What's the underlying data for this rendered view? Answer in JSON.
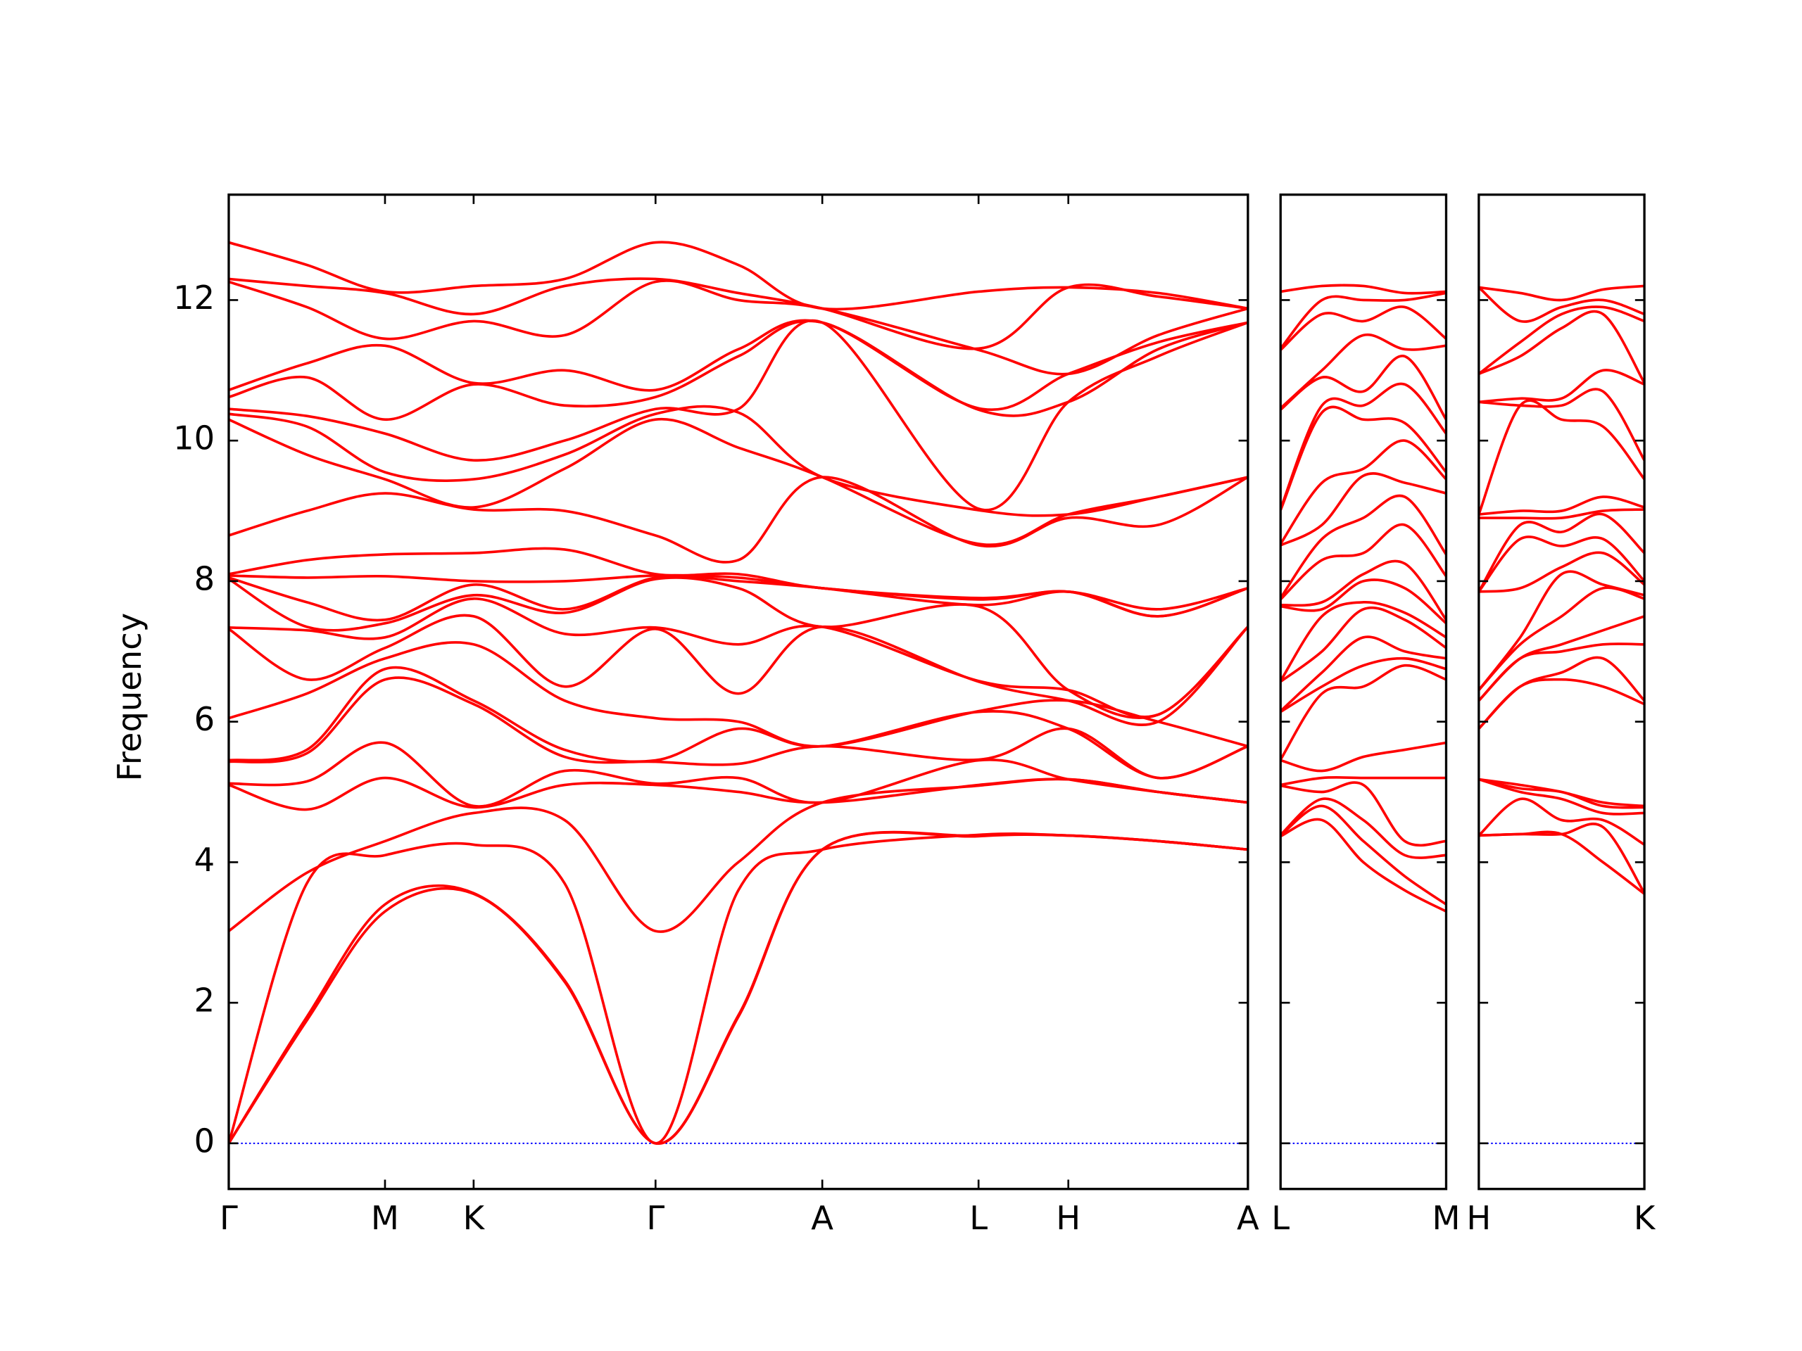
{
  "chart_data": [
    {
      "type": "line",
      "ylabel": "Frequency",
      "color": "#ff0000",
      "xlim": [
        0,
        8.74
      ],
      "ylim": [
        -0.65,
        13.5
      ],
      "xticks": [
        {
          "value": 0,
          "label": "Γ"
        },
        {
          "value": 1.34,
          "label": "M"
        },
        {
          "value": 2.1,
          "label": "K"
        },
        {
          "value": 3.66,
          "label": "Γ"
        },
        {
          "value": 5.09,
          "label": "A"
        },
        {
          "value": 6.43,
          "label": "L"
        },
        {
          "value": 7.2,
          "label": "H"
        },
        {
          "value": 8.74,
          "label": "A"
        }
      ],
      "yticks": [
        0,
        2,
        4,
        6,
        8,
        10,
        12
      ],
      "hline": 0,
      "hline_color": "#0000ff",
      "x": [
        0,
        0.67,
        1.34,
        2.1,
        2.88,
        3.66,
        4.37,
        5.09,
        6.43,
        7.2,
        7.97,
        8.74
      ],
      "series": [
        {
          "values": [
            0,
            1.75,
            3.3,
            3.55,
            2.3,
            0,
            1.8,
            4.18,
            4.37,
            4.38,
            4.3,
            4.18
          ]
        },
        {
          "values": [
            0,
            1.8,
            3.4,
            3.56,
            2.32,
            0,
            1.82,
            4.18,
            4.38,
            4.38,
            4.3,
            4.18
          ]
        },
        {
          "values": [
            0,
            3.7,
            4.1,
            4.25,
            3.7,
            0,
            3.6,
            4.18,
            4.39,
            4.38,
            4.3,
            4.18
          ]
        },
        {
          "values": [
            3.02,
            3.85,
            4.3,
            4.7,
            4.6,
            3.02,
            4.0,
            4.85,
            5.09,
            5.18,
            5.0,
            4.85
          ]
        },
        {
          "values": [
            5.1,
            4.75,
            5.2,
            4.78,
            5.1,
            5.1,
            5.0,
            4.85,
            5.1,
            5.18,
            5.0,
            4.85
          ]
        },
        {
          "values": [
            5.12,
            5.15,
            5.7,
            4.8,
            5.3,
            5.12,
            5.2,
            4.85,
            5.45,
            5.18,
            5.0,
            4.85
          ]
        },
        {
          "values": [
            5.43,
            5.55,
            6.6,
            6.25,
            5.5,
            5.43,
            5.4,
            5.65,
            5.46,
            5.9,
            5.2,
            5.65
          ]
        },
        {
          "values": [
            5.45,
            5.6,
            6.75,
            6.3,
            5.6,
            5.45,
            5.9,
            5.65,
            6.14,
            5.9,
            5.2,
            5.65
          ]
        },
        {
          "values": [
            6.05,
            6.4,
            6.9,
            7.1,
            6.3,
            6.05,
            6.0,
            5.65,
            6.15,
            6.3,
            6.0,
            5.65
          ]
        },
        {
          "values": [
            7.32,
            6.6,
            7.05,
            7.5,
            6.5,
            7.32,
            6.4,
            7.35,
            6.57,
            6.3,
            6.0,
            7.35
          ]
        },
        {
          "values": [
            7.34,
            7.3,
            7.2,
            7.75,
            7.25,
            7.34,
            7.1,
            7.35,
            6.58,
            6.45,
            6.1,
            7.35
          ]
        },
        {
          "values": [
            8.03,
            7.35,
            7.4,
            7.8,
            7.55,
            8.03,
            7.9,
            7.35,
            7.64,
            6.45,
            6.1,
            7.35
          ]
        },
        {
          "values": [
            8.05,
            7.7,
            7.45,
            7.95,
            7.6,
            8.05,
            8.0,
            7.9,
            7.66,
            7.85,
            7.5,
            7.9
          ]
        },
        {
          "values": [
            8.08,
            8.05,
            8.07,
            8.0,
            8.0,
            8.08,
            8.05,
            7.9,
            7.74,
            7.85,
            7.5,
            7.9
          ]
        },
        {
          "values": [
            8.1,
            8.3,
            8.38,
            8.4,
            8.45,
            8.1,
            8.1,
            7.9,
            7.76,
            7.85,
            7.6,
            7.9
          ]
        },
        {
          "values": [
            8.65,
            9.0,
            9.25,
            9.02,
            9.0,
            8.65,
            8.3,
            9.48,
            8.51,
            8.9,
            8.8,
            9.48
          ]
        },
        {
          "values": [
            10.3,
            9.8,
            9.45,
            9.05,
            9.6,
            10.3,
            9.9,
            9.48,
            8.53,
            8.95,
            9.2,
            9.48
          ]
        },
        {
          "values": [
            10.38,
            10.2,
            9.55,
            9.45,
            9.8,
            10.38,
            10.4,
            9.48,
            9.01,
            8.95,
            9.2,
            9.48
          ]
        },
        {
          "values": [
            10.45,
            10.35,
            10.1,
            9.72,
            10.0,
            10.45,
            10.45,
            11.68,
            9.03,
            10.55,
            11.2,
            11.68
          ]
        },
        {
          "values": [
            10.62,
            10.9,
            10.3,
            10.8,
            10.5,
            10.62,
            11.2,
            11.68,
            10.44,
            10.55,
            11.3,
            11.68
          ]
        },
        {
          "values": [
            10.72,
            11.1,
            11.35,
            10.82,
            11.0,
            10.72,
            11.3,
            11.68,
            10.46,
            10.95,
            11.4,
            11.68
          ]
        },
        {
          "values": [
            12.26,
            11.9,
            11.45,
            11.7,
            11.5,
            12.26,
            12.0,
            11.88,
            11.29,
            10.95,
            11.5,
            11.88
          ]
        },
        {
          "values": [
            12.3,
            12.2,
            12.1,
            11.8,
            12.2,
            12.3,
            12.1,
            11.88,
            11.31,
            12.18,
            12.05,
            11.88
          ]
        },
        {
          "values": [
            12.82,
            12.5,
            12.12,
            12.2,
            12.3,
            12.82,
            12.5,
            11.88,
            12.12,
            12.18,
            12.1,
            11.88
          ]
        }
      ]
    },
    {
      "type": "line",
      "color": "#ff0000",
      "xlim": [
        0,
        1.42
      ],
      "ylim": [
        -0.65,
        13.5
      ],
      "xticks": [
        {
          "value": 0,
          "label": "L"
        },
        {
          "value": 1.42,
          "label": "M"
        }
      ],
      "yticks": [
        0,
        2,
        4,
        6,
        8,
        10,
        12
      ],
      "hline": 0,
      "hline_color": "#0000ff",
      "x": [
        0,
        0.355,
        0.71,
        1.065,
        1.42
      ],
      "series": [
        {
          "values": [
            4.37,
            4.6,
            4.0,
            3.6,
            3.3
          ]
        },
        {
          "values": [
            4.38,
            4.8,
            4.3,
            3.8,
            3.4
          ]
        },
        {
          "values": [
            4.39,
            4.9,
            4.6,
            4.1,
            4.1
          ]
        },
        {
          "values": [
            5.09,
            5.0,
            5.1,
            4.3,
            4.3
          ]
        },
        {
          "values": [
            5.1,
            5.2,
            5.2,
            5.2,
            5.2
          ]
        },
        {
          "values": [
            5.45,
            5.3,
            5.5,
            5.6,
            5.7
          ]
        },
        {
          "values": [
            5.46,
            6.4,
            6.5,
            6.8,
            6.6
          ]
        },
        {
          "values": [
            6.14,
            6.5,
            6.8,
            6.9,
            6.75
          ]
        },
        {
          "values": [
            6.15,
            6.7,
            7.2,
            7.0,
            6.9
          ]
        },
        {
          "values": [
            6.57,
            7.0,
            7.6,
            7.45,
            7.05
          ]
        },
        {
          "values": [
            6.58,
            7.5,
            7.7,
            7.55,
            7.2
          ]
        },
        {
          "values": [
            7.64,
            7.6,
            8.0,
            7.9,
            7.4
          ]
        },
        {
          "values": [
            7.66,
            7.7,
            8.1,
            8.25,
            7.45
          ]
        },
        {
          "values": [
            7.74,
            8.3,
            8.4,
            8.8,
            8.07
          ]
        },
        {
          "values": [
            7.76,
            8.6,
            8.9,
            9.2,
            8.38
          ]
        },
        {
          "values": [
            8.51,
            8.8,
            9.5,
            9.4,
            9.25
          ]
        },
        {
          "values": [
            8.53,
            9.4,
            9.6,
            10.0,
            9.45
          ]
        },
        {
          "values": [
            9.01,
            10.4,
            10.3,
            10.25,
            9.55
          ]
        },
        {
          "values": [
            9.03,
            10.5,
            10.5,
            10.8,
            10.1
          ]
        },
        {
          "values": [
            10.44,
            10.9,
            10.7,
            11.2,
            10.3
          ]
        },
        {
          "values": [
            10.46,
            11.0,
            11.5,
            11.3,
            11.35
          ]
        },
        {
          "values": [
            11.29,
            11.8,
            11.7,
            11.9,
            11.45
          ]
        },
        {
          "values": [
            11.31,
            12.0,
            12.0,
            12.0,
            12.1
          ]
        },
        {
          "values": [
            12.12,
            12.2,
            12.2,
            12.1,
            12.12
          ]
        }
      ]
    },
    {
      "type": "line",
      "color": "#ff0000",
      "xlim": [
        0,
        1.42
      ],
      "ylim": [
        -0.65,
        13.5
      ],
      "xticks": [
        {
          "value": 0,
          "label": "H"
        },
        {
          "value": 1.42,
          "label": "K"
        }
      ],
      "yticks": [
        0,
        2,
        4,
        6,
        8,
        10,
        12
      ],
      "hline": 0,
      "hline_color": "#0000ff",
      "x": [
        0,
        0.355,
        0.71,
        1.065,
        1.42
      ],
      "series": [
        {
          "values": [
            4.38,
            4.4,
            4.4,
            4.0,
            3.55
          ]
        },
        {
          "values": [
            4.38,
            4.4,
            4.4,
            4.5,
            3.56
          ]
        },
        {
          "values": [
            4.38,
            4.9,
            4.6,
            4.6,
            4.25
          ]
        },
        {
          "values": [
            5.18,
            5.0,
            4.9,
            4.7,
            4.7
          ]
        },
        {
          "values": [
            5.18,
            5.05,
            5.0,
            4.8,
            4.78
          ]
        },
        {
          "values": [
            5.18,
            5.1,
            5.0,
            4.85,
            4.8
          ]
        },
        {
          "values": [
            5.9,
            6.5,
            6.6,
            6.5,
            6.25
          ]
        },
        {
          "values": [
            5.9,
            6.5,
            6.7,
            6.9,
            6.3
          ]
        },
        {
          "values": [
            6.3,
            6.9,
            7.0,
            7.1,
            7.1
          ]
        },
        {
          "values": [
            6.3,
            6.9,
            7.1,
            7.3,
            7.5
          ]
        },
        {
          "values": [
            6.45,
            7.1,
            7.5,
            7.9,
            7.75
          ]
        },
        {
          "values": [
            6.45,
            7.2,
            8.1,
            7.95,
            7.8
          ]
        },
        {
          "values": [
            7.85,
            7.9,
            8.2,
            8.4,
            7.95
          ]
        },
        {
          "values": [
            7.85,
            8.6,
            8.5,
            8.6,
            8.0
          ]
        },
        {
          "values": [
            7.85,
            8.8,
            8.7,
            8.95,
            8.4
          ]
        },
        {
          "values": [
            8.9,
            8.9,
            8.9,
            9.0,
            9.02
          ]
        },
        {
          "values": [
            8.95,
            9.0,
            9.0,
            9.2,
            9.05
          ]
        },
        {
          "values": [
            8.95,
            10.5,
            10.3,
            10.2,
            9.45
          ]
        },
        {
          "values": [
            10.55,
            10.5,
            10.5,
            10.7,
            9.72
          ]
        },
        {
          "values": [
            10.55,
            10.6,
            10.6,
            11.0,
            10.8
          ]
        },
        {
          "values": [
            10.95,
            11.2,
            11.6,
            11.8,
            10.82
          ]
        },
        {
          "values": [
            10.95,
            11.4,
            11.8,
            11.9,
            11.7
          ]
        },
        {
          "values": [
            12.18,
            11.7,
            11.9,
            12.0,
            11.8
          ]
        },
        {
          "values": [
            12.18,
            12.1,
            12.0,
            12.15,
            12.2
          ]
        }
      ]
    }
  ]
}
